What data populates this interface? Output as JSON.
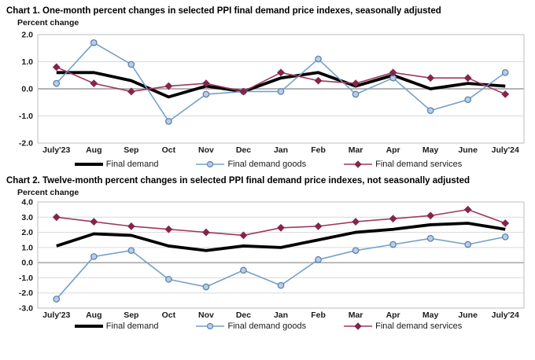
{
  "chart_data": [
    {
      "type": "line",
      "title": "Chart 1. One-month percent changes in selected PPI final demand price indexes, seasonally adjusted",
      "ylabel": "Percent change",
      "xlabel": "",
      "categories": [
        "July'23",
        "Aug",
        "Sep",
        "Oct",
        "Nov",
        "Dec",
        "Jan",
        "Feb",
        "Mar",
        "Apr",
        "May",
        "June",
        "July'24"
      ],
      "y_ticks": [
        "2.0",
        "1.0",
        "0.0",
        "-1.0",
        "-2.0"
      ],
      "ylim": [
        -2.0,
        2.0
      ],
      "grid": true,
      "legend_position": "bottom",
      "colors": {
        "grid": "#d9d9d9",
        "zero_line": "#9c9c9c",
        "plot_border": "#bdbdbd"
      },
      "series": [
        {
          "name": "Final demand",
          "color": "#000000",
          "line_width": 3.8,
          "marker": "none",
          "marker_fill": "#000000",
          "marker_stroke": "#000000",
          "values": [
            0.6,
            0.6,
            0.3,
            -0.3,
            0.1,
            -0.1,
            0.4,
            0.6,
            0.1,
            0.5,
            0.0,
            0.2,
            0.1
          ]
        },
        {
          "name": "Final demand goods",
          "color": "#74a1c9",
          "line_width": 1.6,
          "marker": "circle",
          "marker_fill": "#b9cde9",
          "marker_stroke": "#5b84ae",
          "values": [
            0.2,
            1.7,
            0.9,
            -1.2,
            -0.2,
            -0.1,
            -0.1,
            1.1,
            -0.2,
            0.4,
            -0.8,
            -0.4,
            0.6
          ]
        },
        {
          "name": "Final demand services",
          "color": "#9c3a60",
          "line_width": 1.6,
          "marker": "diamond",
          "marker_fill": "#84254c",
          "marker_stroke": "#84254c",
          "values": [
            0.8,
            0.2,
            -0.1,
            0.1,
            0.2,
            -0.1,
            0.6,
            0.3,
            0.2,
            0.6,
            0.4,
            0.4,
            -0.2
          ]
        }
      ]
    },
    {
      "type": "line",
      "title": "Chart 2. Twelve-month percent changes in selected PPI final demand price indexes, not seasonally adjusted",
      "ylabel": "Percent change",
      "xlabel": "",
      "categories": [
        "July'23",
        "Aug",
        "Sep",
        "Oct",
        "Nov",
        "Dec",
        "Jan",
        "Feb",
        "Mar",
        "Apr",
        "May",
        "June",
        "July'24"
      ],
      "y_ticks": [
        "4.0",
        "3.0",
        "2.0",
        "1.0",
        "0.0",
        "-1.0",
        "-2.0",
        "-3.0"
      ],
      "ylim": [
        -3.0,
        4.0
      ],
      "grid": true,
      "legend_position": "bottom",
      "colors": {
        "grid": "#d9d9d9",
        "zero_line": "#9c9c9c",
        "plot_border": "#bdbdbd"
      },
      "series": [
        {
          "name": "Final demand",
          "color": "#000000",
          "line_width": 3.8,
          "marker": "none",
          "marker_fill": "#000000",
          "marker_stroke": "#000000",
          "values": [
            1.1,
            1.9,
            1.8,
            1.1,
            0.8,
            1.1,
            1.0,
            1.5,
            2.0,
            2.2,
            2.5,
            2.6,
            2.2
          ]
        },
        {
          "name": "Final demand goods",
          "color": "#74a1c9",
          "line_width": 1.6,
          "marker": "circle",
          "marker_fill": "#b9cde9",
          "marker_stroke": "#5b84ae",
          "values": [
            -2.4,
            0.4,
            0.8,
            -1.1,
            -1.6,
            -0.5,
            -1.5,
            0.2,
            0.8,
            1.2,
            1.6,
            1.2,
            1.7
          ]
        },
        {
          "name": "Final demand services",
          "color": "#9c3a60",
          "line_width": 1.6,
          "marker": "diamond",
          "marker_fill": "#84254c",
          "marker_stroke": "#84254c",
          "values": [
            3.0,
            2.7,
            2.4,
            2.2,
            2.0,
            1.8,
            2.3,
            2.4,
            2.7,
            2.9,
            3.1,
            3.5,
            2.6
          ]
        }
      ]
    }
  ]
}
